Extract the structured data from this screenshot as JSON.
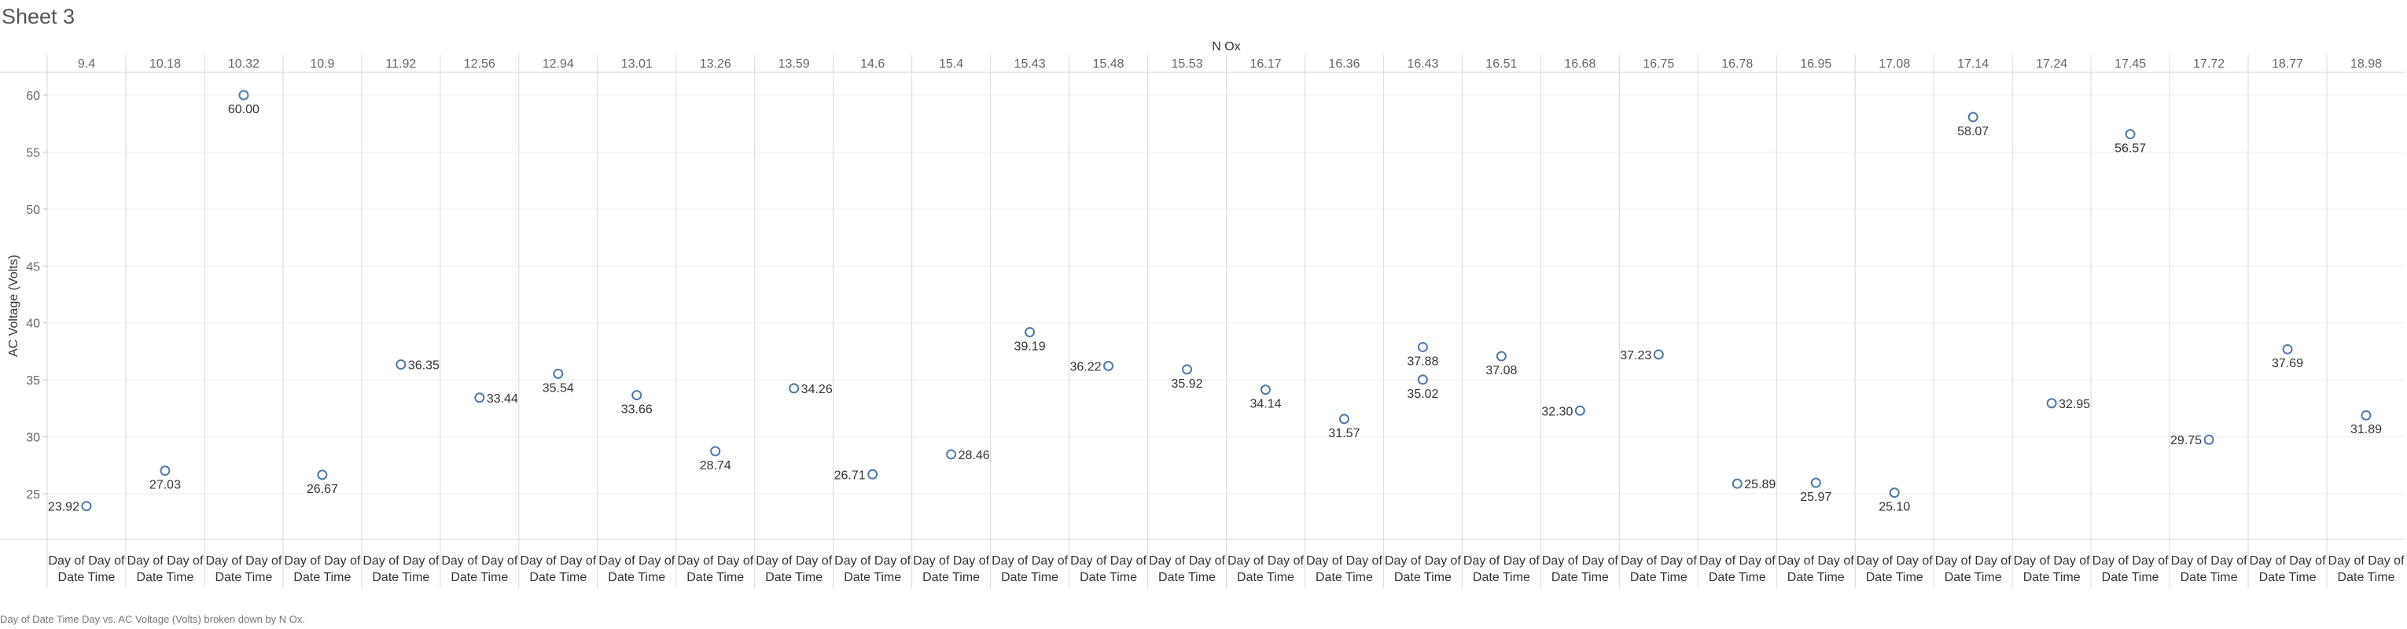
{
  "sheet": {
    "title": "Sheet 3"
  },
  "caption": "Day of Date Time Day vs. AC Voltage (Volts) broken down by N Ox.",
  "chart_data": {
    "type": "scatter",
    "column_dimension_title": "N Ox",
    "ylabel": "AC Voltage (Volts)",
    "ylim": [
      21,
      62
    ],
    "yticks": [
      25,
      30,
      35,
      40,
      45,
      50,
      55,
      60
    ],
    "x_category_label": [
      "Day of Day of",
      "Date Time"
    ],
    "marker_color": "#4e79a7",
    "grid": true,
    "panels": [
      {
        "nox": "9.4",
        "points": [
          {
            "value": 23.92,
            "label": "23.92",
            "label_pos": "left"
          }
        ]
      },
      {
        "nox": "10.18",
        "points": [
          {
            "value": 27.03,
            "label": "27.03",
            "label_pos": "below"
          }
        ]
      },
      {
        "nox": "10.32",
        "points": [
          {
            "value": 60.0,
            "label": "60.00",
            "label_pos": "below"
          }
        ]
      },
      {
        "nox": "10.9",
        "points": [
          {
            "value": 26.67,
            "label": "26.67",
            "label_pos": "below"
          }
        ]
      },
      {
        "nox": "11.92",
        "points": [
          {
            "value": 36.35,
            "label": "36.35",
            "label_pos": "right"
          }
        ]
      },
      {
        "nox": "12.56",
        "points": [
          {
            "value": 33.44,
            "label": "33.44",
            "label_pos": "right"
          }
        ]
      },
      {
        "nox": "12.94",
        "points": [
          {
            "value": 35.54,
            "label": "35.54",
            "label_pos": "below"
          }
        ]
      },
      {
        "nox": "13.01",
        "points": [
          {
            "value": 33.66,
            "label": "33.66",
            "label_pos": "below"
          }
        ]
      },
      {
        "nox": "13.26",
        "points": [
          {
            "value": 28.74,
            "label": "28.74",
            "label_pos": "below"
          }
        ]
      },
      {
        "nox": "13.59",
        "points": [
          {
            "value": 34.26,
            "label": "34.26",
            "label_pos": "right"
          }
        ]
      },
      {
        "nox": "14.6",
        "points": [
          {
            "value": 26.71,
            "label": "26.71",
            "label_pos": "left"
          }
        ]
      },
      {
        "nox": "15.4",
        "points": [
          {
            "value": 28.46,
            "label": "28.46",
            "label_pos": "right"
          }
        ]
      },
      {
        "nox": "15.43",
        "points": [
          {
            "value": 39.19,
            "label": "39.19",
            "label_pos": "below"
          }
        ]
      },
      {
        "nox": "15.48",
        "points": [
          {
            "value": 36.22,
            "label": "36.22",
            "label_pos": "left"
          }
        ]
      },
      {
        "nox": "15.53",
        "points": [
          {
            "value": 35.92,
            "label": "35.92",
            "label_pos": "below"
          }
        ]
      },
      {
        "nox": "16.17",
        "points": [
          {
            "value": 34.14,
            "label": "34.14",
            "label_pos": "below"
          }
        ]
      },
      {
        "nox": "16.36",
        "points": [
          {
            "value": 31.57,
            "label": "31.57",
            "label_pos": "below"
          }
        ]
      },
      {
        "nox": "16.43",
        "points": [
          {
            "value": 37.88,
            "label": "37.88",
            "label_pos": "below"
          },
          {
            "value": 35.02,
            "label": "35.02",
            "label_pos": "below"
          }
        ]
      },
      {
        "nox": "16.51",
        "points": [
          {
            "value": 37.08,
            "label": "37.08",
            "label_pos": "below"
          }
        ]
      },
      {
        "nox": "16.68",
        "points": [
          {
            "value": 32.3,
            "label": "32.30",
            "label_pos": "left"
          }
        ]
      },
      {
        "nox": "16.75",
        "points": [
          {
            "value": 37.23,
            "label": "37.23",
            "label_pos": "left"
          }
        ]
      },
      {
        "nox": "16.78",
        "points": [
          {
            "value": 25.89,
            "label": "25.89",
            "label_pos": "right"
          }
        ]
      },
      {
        "nox": "16.95",
        "points": [
          {
            "value": 25.97,
            "label": "25.97",
            "label_pos": "below"
          }
        ]
      },
      {
        "nox": "17.08",
        "points": [
          {
            "value": 25.1,
            "label": "25.10",
            "label_pos": "below"
          }
        ]
      },
      {
        "nox": "17.14",
        "points": [
          {
            "value": 58.07,
            "label": "58.07",
            "label_pos": "below"
          }
        ]
      },
      {
        "nox": "17.24",
        "points": [
          {
            "value": 32.95,
            "label": "32.95",
            "label_pos": "right"
          }
        ]
      },
      {
        "nox": "17.45",
        "points": [
          {
            "value": 56.57,
            "label": "56.57",
            "label_pos": "below"
          }
        ]
      },
      {
        "nox": "17.72",
        "points": [
          {
            "value": 29.75,
            "label": "29.75",
            "label_pos": "left"
          }
        ]
      },
      {
        "nox": "18.77",
        "points": [
          {
            "value": 37.69,
            "label": "37.69",
            "label_pos": "below"
          }
        ]
      },
      {
        "nox": "18.98",
        "points": [
          {
            "value": 31.89,
            "label": "31.89",
            "label_pos": "below"
          }
        ]
      }
    ]
  }
}
